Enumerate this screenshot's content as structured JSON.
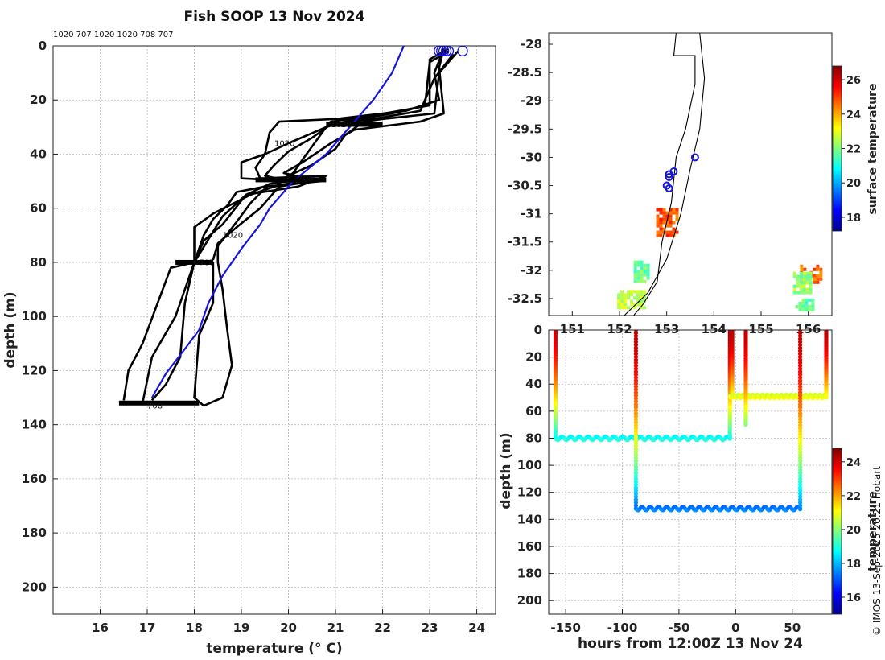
{
  "title": "Fish SOOP 13 Nov 2024",
  "cast_ids_label": "1020 707 1020 1020 708 707",
  "credit": "© IMOS 13-Sep-2025 20:21 Hobart",
  "colors": {
    "cast": "#000000",
    "mean": "#1515dd",
    "marker": "#1515dd"
  },
  "chart_data": [
    {
      "type": "line",
      "name": "temperature-profiles",
      "xlabel": "temperature (° C)",
      "ylabel": "depth (m)",
      "xlim": [
        15,
        24.4
      ],
      "ylim": [
        210,
        0
      ],
      "xticks": [
        16,
        17,
        18,
        19,
        20,
        21,
        22,
        23,
        24
      ],
      "yticks": [
        0,
        20,
        40,
        60,
        80,
        100,
        120,
        140,
        160,
        180,
        200
      ],
      "grid": true,
      "series": [
        {
          "name": "cast-1",
          "color": "#000000",
          "points": [
            [
              23.3,
              1
            ],
            [
              23.1,
              10
            ],
            [
              23.2,
              20
            ],
            [
              22.5,
              24
            ],
            [
              21.0,
              27
            ],
            [
              19.8,
              28
            ],
            [
              19.6,
              32
            ],
            [
              19.5,
              40
            ],
            [
              19.3,
              45
            ],
            [
              19.4,
              49
            ],
            [
              20.8,
              48
            ],
            [
              20.2,
              52
            ],
            [
              19.1,
              55
            ],
            [
              18.6,
              63
            ],
            [
              18.0,
              80
            ],
            [
              17.6,
              100
            ],
            [
              17.1,
              115
            ],
            [
              16.9,
              132
            ],
            [
              16.6,
              132
            ]
          ]
        },
        {
          "name": "cast-2",
          "color": "#000000",
          "points": [
            [
              23.4,
              1
            ],
            [
              23.0,
              5
            ],
            [
              23.0,
              22
            ],
            [
              21.7,
              26
            ],
            [
              20.9,
              28
            ],
            [
              20.8,
              30
            ],
            [
              20.0,
              36
            ],
            [
              19.5,
              40
            ],
            [
              19.0,
              43
            ],
            [
              19.0,
              49
            ],
            [
              20.2,
              50
            ],
            [
              19.7,
              52
            ],
            [
              19.2,
              55
            ],
            [
              18.4,
              62
            ],
            [
              18.0,
              67
            ],
            [
              18.0,
              80
            ],
            [
              17.5,
              82
            ],
            [
              16.9,
              110
            ],
            [
              16.6,
              120
            ],
            [
              16.5,
              131
            ]
          ]
        },
        {
          "name": "cast-3",
          "color": "#000000",
          "points": [
            [
              23.6,
              2
            ],
            [
              23.2,
              10
            ],
            [
              23.1,
              25
            ],
            [
              22.0,
              27
            ],
            [
              21.6,
              28
            ],
            [
              21.2,
              33
            ],
            [
              21.0,
              38
            ],
            [
              20.5,
              44
            ],
            [
              20.0,
              48
            ],
            [
              20.7,
              50
            ],
            [
              19.5,
              52
            ],
            [
              18.9,
              54
            ],
            [
              18.7,
              59
            ],
            [
              18.4,
              64
            ],
            [
              18.2,
              70
            ],
            [
              18.0,
              80
            ],
            [
              18.4,
              80
            ],
            [
              18.4,
              95
            ],
            [
              18.1,
              107
            ],
            [
              18.0,
              130
            ],
            [
              18.2,
              133
            ]
          ]
        },
        {
          "name": "cast-4",
          "color": "#000000",
          "points": [
            [
              23.3,
              1
            ],
            [
              23.2,
              8
            ],
            [
              23.3,
              25
            ],
            [
              22.8,
              28
            ],
            [
              21.4,
              31
            ],
            [
              20.9,
              36
            ],
            [
              20.3,
              43
            ],
            [
              19.9,
              47
            ],
            [
              20.4,
              49
            ],
            [
              19.6,
              51
            ],
            [
              19.2,
              58
            ],
            [
              18.9,
              65
            ],
            [
              18.5,
              74
            ],
            [
              18.5,
              80
            ],
            [
              18.6,
              90
            ],
            [
              18.7,
              105
            ],
            [
              18.8,
              118
            ],
            [
              18.6,
              130
            ],
            [
              18.2,
              133
            ]
          ]
        },
        {
          "name": "cast-5",
          "color": "#000000",
          "points": [
            [
              23.4,
              2
            ],
            [
              23.0,
              6
            ],
            [
              22.9,
              22
            ],
            [
              22.2,
              25
            ],
            [
              21.2,
              28
            ],
            [
              20.8,
              30
            ],
            [
              20.3,
              42
            ],
            [
              20.1,
              47
            ],
            [
              19.9,
              49
            ],
            [
              20.5,
              50
            ],
            [
              19.8,
              52
            ],
            [
              19.4,
              60
            ],
            [
              18.9,
              67
            ],
            [
              18.5,
              73
            ],
            [
              18.4,
              79
            ]
          ]
        },
        {
          "name": "cast-6",
          "color": "#000000",
          "points": [
            [
              23.5,
              3
            ],
            [
              23.1,
              12
            ],
            [
              22.8,
              24
            ],
            [
              21.8,
              27
            ],
            [
              20.9,
              29
            ],
            [
              20.5,
              34
            ],
            [
              20.0,
              39
            ],
            [
              19.7,
              44
            ],
            [
              19.5,
              48
            ],
            [
              20.0,
              50
            ],
            [
              19.6,
              51
            ],
            [
              19.1,
              55
            ],
            [
              18.6,
              66
            ],
            [
              18.2,
              72
            ],
            [
              18.0,
              80
            ],
            [
              17.8,
              95
            ],
            [
              17.7,
              115
            ],
            [
              17.4,
              125
            ],
            [
              17.1,
              131
            ]
          ]
        },
        {
          "name": "mean-profile",
          "color": "#1515dd",
          "points": [
            [
              22.45,
              0
            ],
            [
              22.2,
              10
            ],
            [
              21.8,
              20
            ],
            [
              21.3,
              30
            ],
            [
              20.8,
              40
            ],
            [
              20.1,
              50
            ],
            [
              19.6,
              60
            ],
            [
              19.4,
              66
            ],
            [
              19.0,
              75
            ],
            [
              18.6,
              85
            ],
            [
              18.3,
              95
            ],
            [
              18.1,
              105
            ],
            [
              17.8,
              112
            ],
            [
              17.4,
              121
            ],
            [
              17.1,
              130
            ]
          ]
        }
      ],
      "markers": [
        [
          23.2,
          1
        ],
        [
          23.3,
          1
        ],
        [
          23.4,
          1
        ],
        [
          23.7,
          1
        ],
        [
          23.25,
          1
        ],
        [
          23.35,
          1
        ]
      ],
      "bars": [
        {
          "depth": 132,
          "x0": 16.4,
          "x1": 18.1
        },
        {
          "depth": 80,
          "x0": 17.6,
          "x1": 18.4
        },
        {
          "depth": 49.5,
          "x0": 19.3,
          "x1": 20.8
        },
        {
          "depth": 29,
          "x0": 20.8,
          "x1": 22.0
        }
      ],
      "labels": [
        {
          "text": "1020",
          "x": 20.9,
          "y": 30
        },
        {
          "text": "1020",
          "x": 19.7,
          "y": 37
        },
        {
          "text": "708",
          "x": 20.2,
          "y": 50
        },
        {
          "text": "1020",
          "x": 18.6,
          "y": 71
        },
        {
          "text": "707",
          "x": 18.1,
          "y": 81
        },
        {
          "text": "708",
          "x": 17.0,
          "y": 134
        }
      ]
    },
    {
      "type": "heatmap",
      "name": "sea-surface-temperature-map",
      "xlim": [
        150.5,
        156.5
      ],
      "ylim": [
        -32.8,
        -27.8
      ],
      "xticks": [
        151,
        152,
        153,
        154,
        155,
        156
      ],
      "yticks": [
        -28,
        -28.5,
        -29,
        -29.5,
        -30,
        -30.5,
        -31,
        -31.5,
        -32,
        -32.5
      ],
      "colorbar_label": "surface temperature",
      "colorbar_ticks": [
        18,
        20,
        22,
        24,
        26
      ],
      "colorbar_range": [
        17.2,
        26.8
      ],
      "coast": [
        [
          153.2,
          -27.8
        ],
        [
          153.15,
          -28.2
        ],
        [
          153.6,
          -28.2
        ],
        [
          153.6,
          -28.7
        ],
        [
          153.4,
          -29.5
        ],
        [
          153.2,
          -30.0
        ],
        [
          153.1,
          -30.8
        ],
        [
          152.9,
          -31.5
        ],
        [
          152.8,
          -32.2
        ],
        [
          152.5,
          -32.6
        ],
        [
          152.3,
          -32.8
        ]
      ],
      "shelf": [
        [
          153.7,
          -27.8
        ],
        [
          153.8,
          -28.6
        ],
        [
          153.7,
          -29.5
        ],
        [
          153.5,
          -30.2
        ],
        [
          153.3,
          -31.0
        ],
        [
          153.0,
          -31.8
        ],
        [
          152.6,
          -32.4
        ],
        [
          152.1,
          -32.8
        ]
      ],
      "stations": [
        [
          153.6,
          -30.0
        ],
        [
          153.15,
          -30.25
        ],
        [
          153.05,
          -30.3
        ],
        [
          153.05,
          -30.35
        ],
        [
          153.0,
          -30.5
        ],
        [
          153.05,
          -30.55
        ]
      ],
      "sst_patches": [
        {
          "lon": 153.0,
          "lat": -31.15,
          "w": 0.45,
          "h": 0.5,
          "temp": 24.8
        },
        {
          "lon": 152.45,
          "lat": -32.0,
          "w": 0.3,
          "h": 0.35,
          "temp": 21.8
        },
        {
          "lon": 152.25,
          "lat": -32.5,
          "w": 0.6,
          "h": 0.3,
          "temp": 22.6
        },
        {
          "lon": 156.05,
          "lat": -32.05,
          "w": 0.45,
          "h": 0.3,
          "temp": 24.6
        },
        {
          "lon": 155.85,
          "lat": -32.2,
          "w": 0.35,
          "h": 0.35,
          "temp": 22.2
        },
        {
          "lon": 155.9,
          "lat": -32.6,
          "w": 0.35,
          "h": 0.2,
          "temp": 21.6
        }
      ]
    },
    {
      "type": "scatter",
      "name": "depth-time-section",
      "xlabel": "hours from 12:00Z 13 Nov 24",
      "ylabel": "depth (m)",
      "xlim": [
        -165,
        85
      ],
      "ylim": [
        210,
        0
      ],
      "xticks": [
        -150,
        -100,
        -50,
        0,
        50
      ],
      "yticks": [
        0,
        20,
        40,
        60,
        80,
        100,
        120,
        140,
        160,
        180,
        200
      ],
      "colorbar_label": "temperature",
      "colorbar_ticks": [
        16,
        18,
        20,
        22,
        24
      ],
      "colorbar_range": [
        15,
        24.8
      ],
      "segments": [
        {
          "kind": "vertical",
          "x": -159,
          "d0": 0,
          "d1": 80,
          "t0": 24,
          "t1": 18.7
        },
        {
          "kind": "horizontal",
          "d": 80,
          "x0": -159,
          "x1": -5,
          "t": 18.8
        },
        {
          "kind": "vertical",
          "x": -88,
          "d0": 0,
          "d1": 132,
          "t0": 24.2,
          "t1": 17.2
        },
        {
          "kind": "horizontal",
          "d": 132,
          "x0": -88,
          "x1": 57,
          "t": 17.4
        },
        {
          "kind": "vertical",
          "x": -5,
          "d0": 0,
          "d1": 80,
          "t0": 24.3,
          "t1": 18.9
        },
        {
          "kind": "vertical",
          "x": -3,
          "d0": 0,
          "d1": 50,
          "t0": 24.2,
          "t1": 21
        },
        {
          "kind": "horizontal",
          "d": 49,
          "x0": -5,
          "x1": 80,
          "t": 20.9
        },
        {
          "kind": "vertical",
          "x": 9,
          "d0": 0,
          "d1": 70,
          "t0": 24.2,
          "t1": 20
        },
        {
          "kind": "vertical",
          "x": 57,
          "d0": 0,
          "d1": 132,
          "t0": 24.2,
          "t1": 17.5
        },
        {
          "kind": "vertical",
          "x": 80,
          "d0": 0,
          "d1": 50,
          "t0": 24.2,
          "t1": 21
        }
      ]
    }
  ]
}
